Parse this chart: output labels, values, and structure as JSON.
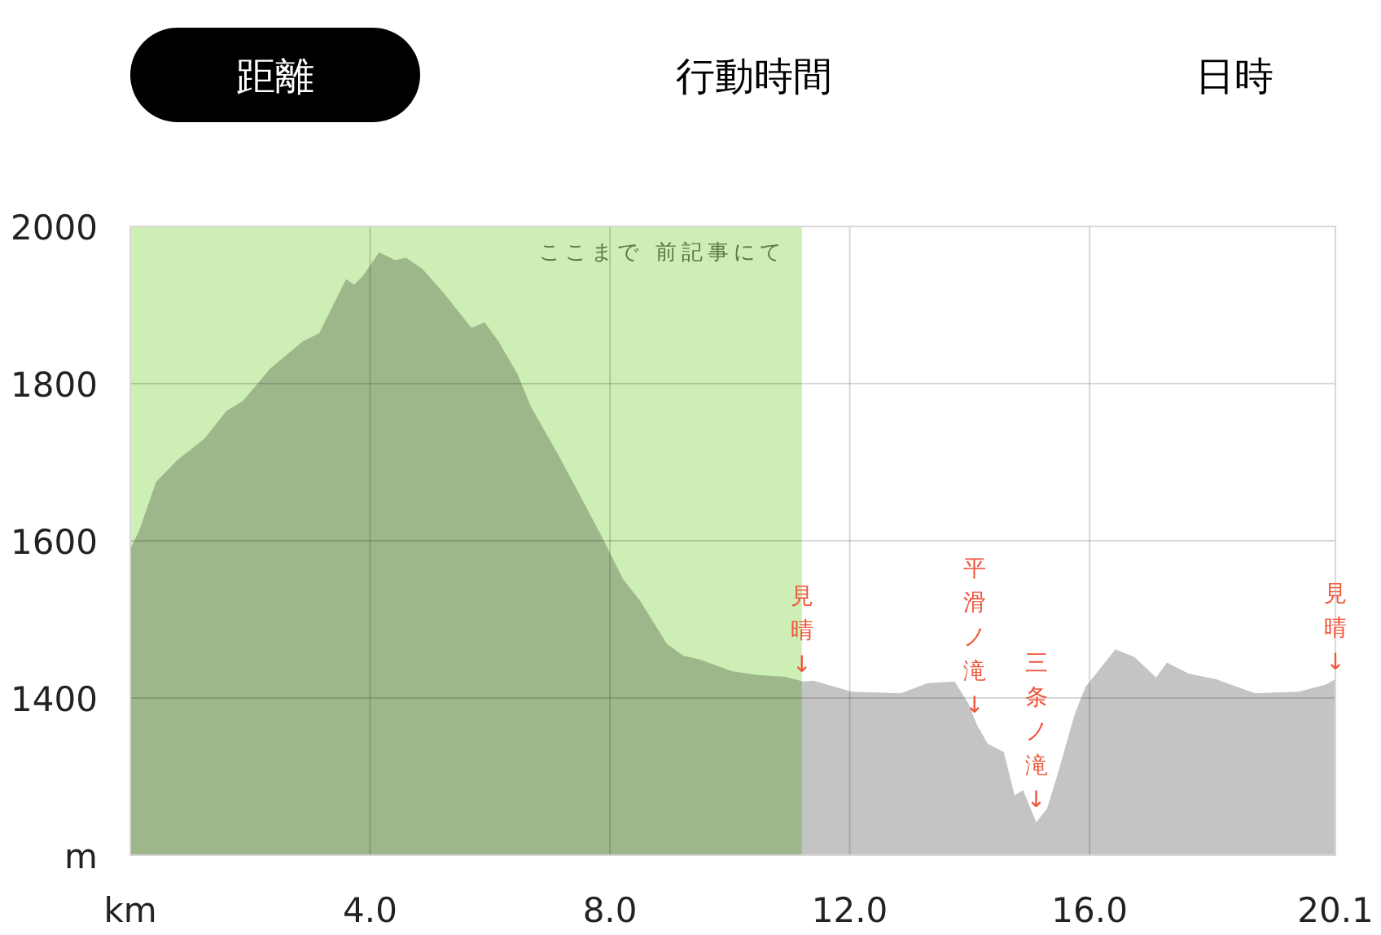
{
  "chart_data": {
    "type": "area",
    "annotations": [
      "距離",
      "行動時間",
      "日時",
      {
        "text": "見晴↓",
        "x": 11.2,
        "y": 1425
      },
      {
        "text": "平滑ノ滝↓",
        "x": 14.08,
        "y": 1373
      },
      {
        "text": "三条ノ滝↓",
        "x": 15.11,
        "y": 1253
      },
      {
        "text": "見晴↓",
        "x": 20.1,
        "y": 1428
      }
    ],
    "x": [
      0,
      0.15,
      0.43,
      0.79,
      1.24,
      1.6,
      1.88,
      2.33,
      2.88,
      3.15,
      3.6,
      3.73,
      3.87,
      4.15,
      4.42,
      4.6,
      4.87,
      5.23,
      5.69,
      5.91,
      6.14,
      6.46,
      6.68,
      7.14,
      7.45,
      7.86,
      8.22,
      8.5,
      8.95,
      9.22,
      9.5,
      10.04,
      10.49,
      10.93,
      11.22,
      11.4,
      12.03,
      12.85,
      13.3,
      13.75,
      13.98,
      14.12,
      14.3,
      14.57,
      14.75,
      14.89,
      15.11,
      15.29,
      15.47,
      15.75,
      15.93,
      16.11,
      16.43,
      16.75,
      17.11,
      17.29,
      17.65,
      18.1,
      18.76,
      19.49,
      19.94,
      20.1
    ],
    "series": [
      {
        "color": "#c4c4c4",
        "values": [
          1590,
          1613,
          1675,
          1703,
          1730,
          1765,
          1778,
          1819,
          1854,
          1864,
          1933,
          1926,
          1936,
          1967,
          1957,
          1960,
          1946,
          1915,
          1871,
          1878,
          1854,
          1812,
          1771,
          1709,
          1665,
          1606,
          1551,
          1524,
          1469,
          1454,
          1449,
          1434,
          1429,
          1427,
          1421,
          1422,
          1408,
          1406,
          1419,
          1421,
          1393,
          1366,
          1342,
          1331,
          1276,
          1283,
          1242,
          1259,
          1304,
          1379,
          1414,
          1431,
          1462,
          1452,
          1426,
          1445,
          1431,
          1424,
          1406,
          1408,
          1417,
          1424
        ]
      }
    ],
    "xlim": [
      0,
      20.1
    ],
    "ylim": [
      1200,
      2000
    ],
    "xticks": [
      {
        "value": 0,
        "label": "km"
      },
      {
        "value": 4,
        "label": "4.0"
      },
      {
        "value": 8,
        "label": "8.0"
      },
      {
        "value": 12,
        "label": "12.0"
      },
      {
        "value": 16,
        "label": "16.0"
      },
      20.1
    ],
    "yticks": [
      {
        "value": 1200,
        "label": "m"
      },
      1400,
      1600,
      1800,
      2000
    ],
    "grid": true,
    "bands": [
      {
        "axis": "x",
        "from": 0,
        "to": 11.2,
        "label": "ここまで 前記事にて",
        "color": "#cdeeb5"
      }
    ]
  }
}
